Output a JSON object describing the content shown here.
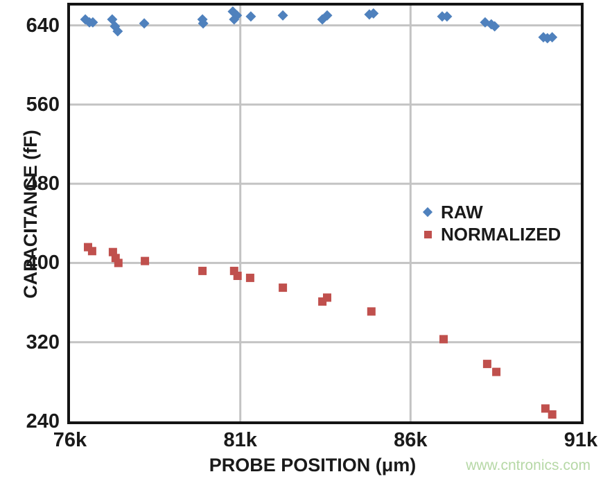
{
  "watermark": {
    "text": "www.cntronics.com",
    "color": "#b6d8a6"
  },
  "chart_data": {
    "type": "scatter",
    "title": "",
    "xlabel": "PROBE POSITION (μm)",
    "ylabel": "CAPACITANCE (fF)",
    "xlim": [
      76000,
      91000
    ],
    "ylim": [
      240,
      660
    ],
    "grid": true,
    "grid_color": "#c3c3c3",
    "frame_color": "#141414",
    "text_color": "#1a1a1a",
    "legend_position": "inside-right-middle",
    "x_ticks": [
      {
        "v": 76000,
        "label": "76k"
      },
      {
        "v": 81000,
        "label": "81k"
      },
      {
        "v": 86000,
        "label": "86k"
      },
      {
        "v": 91000,
        "label": "91k"
      }
    ],
    "y_ticks": [
      {
        "v": 240,
        "label": "240"
      },
      {
        "v": 320,
        "label": "320"
      },
      {
        "v": 400,
        "label": "400"
      },
      {
        "v": 480,
        "label": "480"
      },
      {
        "v": 560,
        "label": "560"
      },
      {
        "v": 640,
        "label": "640"
      }
    ],
    "x_gridlines": [
      81000,
      86000
    ],
    "y_gridlines": [
      320,
      400,
      480,
      560,
      640
    ],
    "series": [
      {
        "name": "RAW",
        "marker": "diamond",
        "color": "#4f81bd",
        "points": [
          [
            76450,
            646
          ],
          [
            76570,
            643
          ],
          [
            76670,
            643
          ],
          [
            77240,
            646
          ],
          [
            77320,
            639
          ],
          [
            77400,
            634
          ],
          [
            78180,
            642
          ],
          [
            79890,
            646
          ],
          [
            79910,
            642
          ],
          [
            80780,
            654
          ],
          [
            80900,
            650
          ],
          [
            80820,
            646
          ],
          [
            81310,
            649
          ],
          [
            82250,
            650
          ],
          [
            83410,
            646
          ],
          [
            83550,
            650
          ],
          [
            84790,
            651
          ],
          [
            84910,
            652
          ],
          [
            86930,
            649
          ],
          [
            87070,
            649
          ],
          [
            88190,
            643
          ],
          [
            88370,
            641
          ],
          [
            88470,
            639
          ],
          [
            89900,
            628
          ],
          [
            90020,
            627
          ],
          [
            90160,
            628
          ]
        ]
      },
      {
        "name": "NORMALIZED",
        "marker": "square",
        "color": "#c0504d",
        "points": [
          [
            76530,
            416
          ],
          [
            76650,
            412
          ],
          [
            77260,
            411
          ],
          [
            77340,
            405
          ],
          [
            77420,
            400
          ],
          [
            78200,
            402
          ],
          [
            79890,
            392
          ],
          [
            80820,
            392
          ],
          [
            80920,
            387
          ],
          [
            81290,
            385
          ],
          [
            82250,
            375
          ],
          [
            83410,
            361
          ],
          [
            83550,
            365
          ],
          [
            84850,
            351
          ],
          [
            86970,
            323
          ],
          [
            88250,
            298
          ],
          [
            88520,
            290
          ],
          [
            89960,
            253
          ],
          [
            90160,
            247
          ]
        ]
      }
    ]
  }
}
